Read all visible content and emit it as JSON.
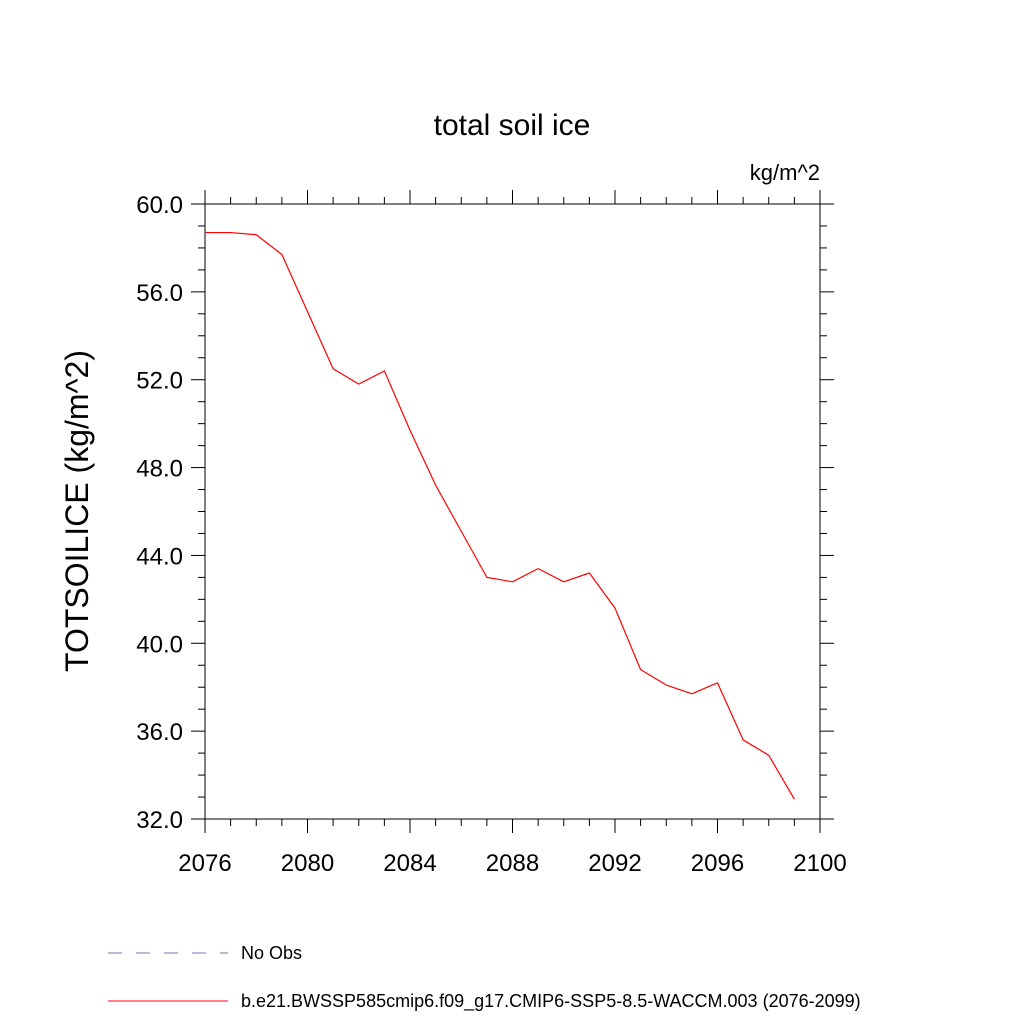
{
  "chart_data": {
    "type": "line",
    "title": "total soil ice",
    "units_label": "kg/m^2",
    "ylabel": "TOTSOILICE  (kg/m^2)",
    "xlabel": "",
    "xlim": [
      2076,
      2100
    ],
    "ylim": [
      32.0,
      60.0
    ],
    "x_ticks": [
      2076,
      2080,
      2084,
      2088,
      2092,
      2096,
      2100
    ],
    "x_tick_labels": [
      "2076",
      "2080",
      "2084",
      "2088",
      "2092",
      "2096",
      "2100"
    ],
    "y_ticks": [
      32.0,
      36.0,
      40.0,
      44.0,
      48.0,
      52.0,
      56.0,
      60.0
    ],
    "y_tick_labels": [
      "32.0",
      "36.0",
      "40.0",
      "44.0",
      "48.0",
      "52.0",
      "56.0",
      "60.0"
    ],
    "grid": false,
    "legend": [
      {
        "label": "No Obs",
        "color": "#7a70b5",
        "style": "dashed"
      },
      {
        "label": "b.e21.BWSSP585cmip6.f09_g17.CMIP6-SSP5-8.5-WACCM.003 (2076-2099)",
        "color": "#ff0000",
        "style": "solid"
      }
    ],
    "series": [
      {
        "name": "b.e21.BWSSP585cmip6.f09_g17.CMIP6-SSP5-8.5-WACCM.003 (2076-2099)",
        "color": "#ff0000",
        "x": [
          2076,
          2077,
          2078,
          2079,
          2080,
          2081,
          2082,
          2083,
          2084,
          2085,
          2086,
          2087,
          2088,
          2089,
          2090,
          2091,
          2092,
          2093,
          2094,
          2095,
          2096,
          2097,
          2098,
          2099
        ],
        "y": [
          58.7,
          58.7,
          58.6,
          57.7,
          55.1,
          52.5,
          51.8,
          52.4,
          49.7,
          47.2,
          45.1,
          43.0,
          42.8,
          43.4,
          42.8,
          43.2,
          41.6,
          38.8,
          38.1,
          37.7,
          38.2,
          35.6,
          34.9,
          32.9
        ]
      }
    ]
  }
}
